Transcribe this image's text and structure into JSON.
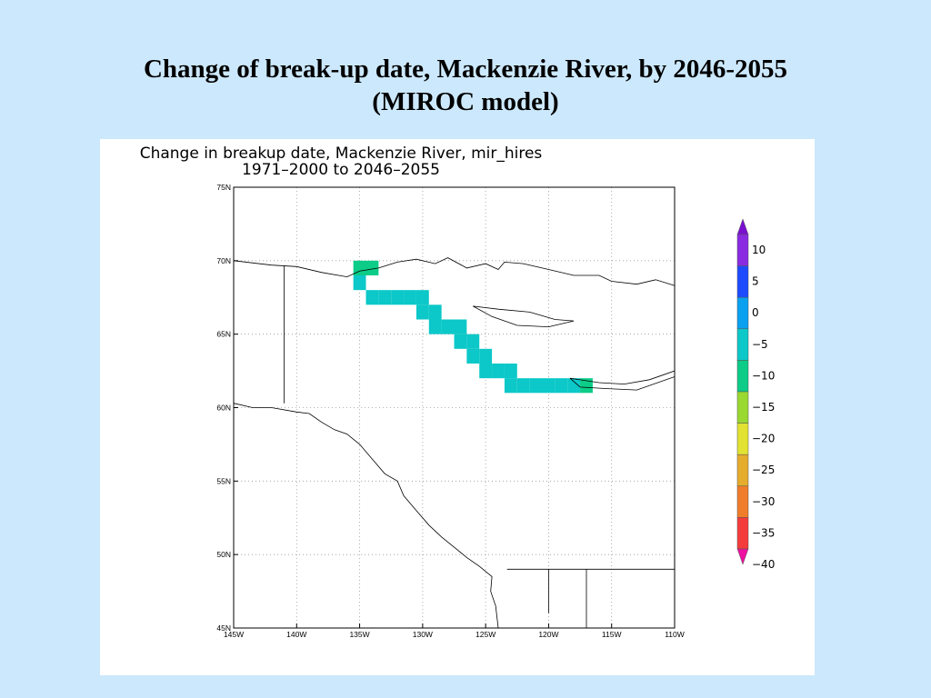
{
  "slide": {
    "title_line1": "Change of break-up date, Mackenzie River, by 2046-2055",
    "title_line2": "(MIROC model)"
  },
  "figure": {
    "title_line1": "Change in breakup date, Mackenzie River, mir_hires",
    "title_line2": "1971–2000 to 2046–2055",
    "lon_range": [
      -145,
      -110
    ],
    "lat_range": [
      45,
      75
    ],
    "lon_ticks": [
      {
        "value": -145,
        "label": "145W"
      },
      {
        "value": -140,
        "label": "140W"
      },
      {
        "value": -135,
        "label": "135W"
      },
      {
        "value": -130,
        "label": "130W"
      },
      {
        "value": -125,
        "label": "125W"
      },
      {
        "value": -120,
        "label": "120W"
      },
      {
        "value": -115,
        "label": "115W"
      },
      {
        "value": -110,
        "label": "110W"
      }
    ],
    "lat_ticks": [
      {
        "value": 75,
        "label": "75N"
      },
      {
        "value": 70,
        "label": "70N"
      },
      {
        "value": 65,
        "label": "65N"
      },
      {
        "value": 60,
        "label": "60N"
      },
      {
        "value": 55,
        "label": "55N"
      },
      {
        "value": 50,
        "label": "50N"
      },
      {
        "value": 45,
        "label": "45N"
      }
    ],
    "grid_lines": "dotted",
    "colorbar": {
      "labels": [
        "10",
        "5",
        "0",
        "−5",
        "−10",
        "−15",
        "−20",
        "−25",
        "−30",
        "−35",
        "−40"
      ],
      "colors": [
        "#7a10d0",
        "#8a2be2",
        "#1e4bff",
        "#0aa0f0",
        "#0cc8c8",
        "#0ccc88",
        "#9ad832",
        "#e2e232",
        "#e6ad2c",
        "#f07d2a",
        "#f53c3c",
        "#ee10a0"
      ]
    },
    "grid_cells": [
      {
        "lon": -135,
        "lat": 69.5,
        "value": -12
      },
      {
        "lon": -134,
        "lat": 69.5,
        "value": -12
      },
      {
        "lon": -135,
        "lat": 68.5,
        "value": -8
      },
      {
        "lon": -134,
        "lat": 67.5,
        "value": -8
      },
      {
        "lon": -133,
        "lat": 67.5,
        "value": -8
      },
      {
        "lon": -132,
        "lat": 67.5,
        "value": -8
      },
      {
        "lon": -131,
        "lat": 67.5,
        "value": -8
      },
      {
        "lon": -130,
        "lat": 67.5,
        "value": -8
      },
      {
        "lon": -130,
        "lat": 66.5,
        "value": -8
      },
      {
        "lon": -129,
        "lat": 66.5,
        "value": -8
      },
      {
        "lon": -129,
        "lat": 65.5,
        "value": -8
      },
      {
        "lon": -128,
        "lat": 65.5,
        "value": -8
      },
      {
        "lon": -127,
        "lat": 65.5,
        "value": -8
      },
      {
        "lon": -127,
        "lat": 64.5,
        "value": -8
      },
      {
        "lon": -126,
        "lat": 64.5,
        "value": -8
      },
      {
        "lon": -126,
        "lat": 63.5,
        "value": -8
      },
      {
        "lon": -125,
        "lat": 63.5,
        "value": -8
      },
      {
        "lon": -125,
        "lat": 62.5,
        "value": -8
      },
      {
        "lon": -124,
        "lat": 62.5,
        "value": -8
      },
      {
        "lon": -123,
        "lat": 62.5,
        "value": -8
      },
      {
        "lon": -123,
        "lat": 61.5,
        "value": -8
      },
      {
        "lon": -122,
        "lat": 61.5,
        "value": -8
      },
      {
        "lon": -121,
        "lat": 61.5,
        "value": -8
      },
      {
        "lon": -120,
        "lat": 61.5,
        "value": -8
      },
      {
        "lon": -119,
        "lat": 61.5,
        "value": -8
      },
      {
        "lon": -118,
        "lat": 61.5,
        "value": -8
      },
      {
        "lon": -117,
        "lat": 61.5,
        "value": -12
      }
    ],
    "coastline": [
      [
        -145,
        70.0
      ],
      [
        -142,
        69.7
      ],
      [
        -140,
        69.6
      ],
      [
        -138,
        69.2
      ],
      [
        -136,
        68.9
      ],
      [
        -135,
        69.3
      ],
      [
        -133.5,
        69.5
      ],
      [
        -132,
        69.9
      ],
      [
        -130.5,
        70.1
      ],
      [
        -129,
        69.8
      ],
      [
        -128,
        70.2
      ],
      [
        -126.5,
        69.5
      ],
      [
        -125,
        69.8
      ],
      [
        -124,
        69.4
      ],
      [
        -123.5,
        69.9
      ],
      [
        -122,
        69.8
      ],
      [
        -120,
        69.4
      ],
      [
        -118,
        69.0
      ],
      [
        -116,
        69.0
      ],
      [
        -115,
        68.6
      ],
      [
        -113,
        68.4
      ],
      [
        -111.5,
        68.7
      ],
      [
        -110,
        68.3
      ]
    ],
    "coast_west": [
      [
        -145,
        60.3
      ],
      [
        -143.5,
        60.0
      ],
      [
        -142,
        60.0
      ],
      [
        -140,
        59.7
      ],
      [
        -139,
        59.6
      ],
      [
        -138,
        59.0
      ],
      [
        -137,
        58.5
      ],
      [
        -136,
        58.2
      ],
      [
        -135,
        57.5
      ],
      [
        -134,
        56.5
      ],
      [
        -133,
        55.5
      ],
      [
        -132,
        55.0
      ],
      [
        -131.5,
        54.0
      ],
      [
        -130.5,
        53.0
      ],
      [
        -129.5,
        52.0
      ],
      [
        -128.5,
        51.2
      ],
      [
        -127.5,
        50.5
      ],
      [
        -126.5,
        49.8
      ],
      [
        -125.5,
        49.2
      ],
      [
        -124.5,
        48.5
      ],
      [
        -124.6,
        47.5
      ],
      [
        -124.2,
        46.5
      ],
      [
        -124.0,
        45.0
      ]
    ],
    "border_lines": [
      [
        [
          -141,
          69.65
        ],
        [
          -141,
          60.3
        ]
      ],
      [
        [
          -123.3,
          49.0
        ],
        [
          -110,
          49.0
        ]
      ],
      [
        [
          -120,
          49.0
        ],
        [
          -120,
          46.0
        ]
      ],
      [
        [
          -117,
          49.0
        ],
        [
          -117,
          45.0
        ]
      ]
    ],
    "lakes": [
      [
        [
          -126,
          66.9
        ],
        [
          -124,
          66.7
        ],
        [
          -121.5,
          66.5
        ],
        [
          -119.5,
          66.0
        ],
        [
          -118,
          65.9
        ],
        [
          -120,
          65.5
        ],
        [
          -122.5,
          65.6
        ],
        [
          -124.5,
          66.2
        ],
        [
          -126,
          66.9
        ]
      ],
      [
        [
          -118.3,
          62.0
        ],
        [
          -116,
          61.7
        ],
        [
          -114,
          61.6
        ],
        [
          -112,
          61.9
        ],
        [
          -110,
          62.5
        ],
        [
          -110,
          62.1
        ],
        [
          -113,
          61.2
        ],
        [
          -115.5,
          61.3
        ],
        [
          -117.5,
          61.4
        ],
        [
          -118.3,
          62.0
        ]
      ]
    ]
  }
}
